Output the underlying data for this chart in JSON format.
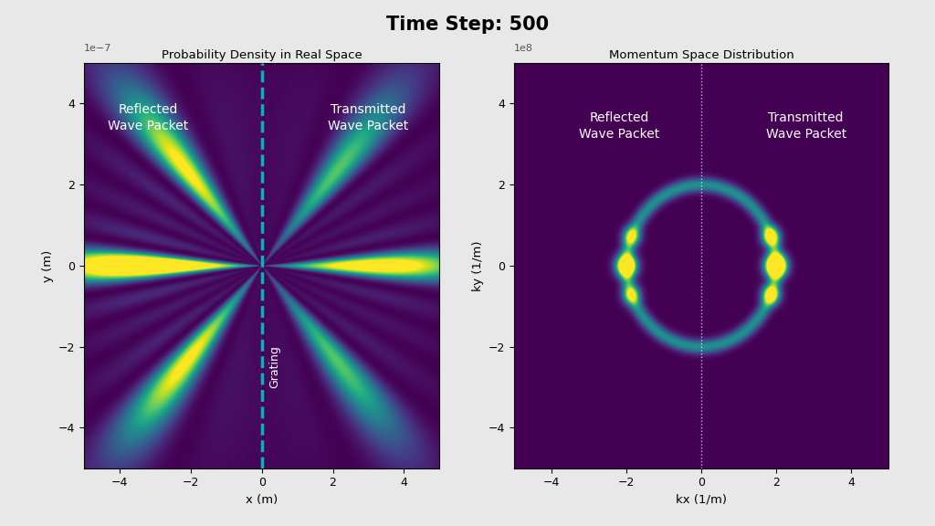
{
  "title": "Time Step: 500",
  "title_fontsize": 15,
  "title_fontweight": "bold",
  "left_title": "Probability Density in Real Space",
  "right_title": "Momentum Space Distribution",
  "left_xlabel": "x (m)",
  "left_ylabel": "y (m)",
  "right_xlabel": "kx (1/m)",
  "right_ylabel": "ky (1/m)",
  "left_xticks": [
    -4,
    -2,
    0,
    2,
    4
  ],
  "left_yticks": [
    -4,
    -2,
    0,
    2,
    4
  ],
  "right_xticks": [
    -4,
    -2,
    0,
    2,
    4
  ],
  "right_yticks": [
    -4,
    -2,
    0,
    2,
    4
  ],
  "grating_label": "Grating",
  "left_label_reflected": "Reflected\nWave Packet",
  "left_label_transmitted": "Transmitted\nWave Packet",
  "right_label_reflected": "Reflected\nWave Packet",
  "right_label_transmitted": "Transmitted\nWave Packet",
  "colormap": "viridis",
  "grid_N": 600,
  "fig_facecolor": "#e8e8e8"
}
